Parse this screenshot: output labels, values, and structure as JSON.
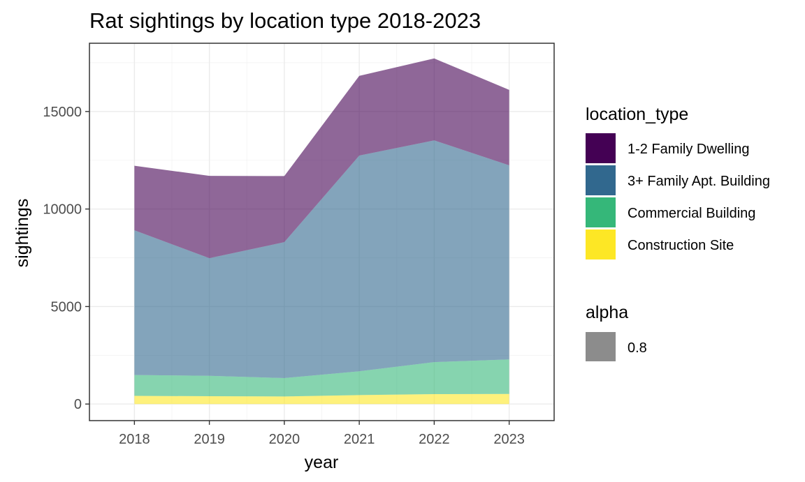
{
  "chart_data": {
    "type": "area",
    "stacked": true,
    "title": "Rat sightings by location type 2018-2023",
    "xlabel": "year",
    "ylabel": "sightings",
    "x": [
      2018,
      2019,
      2020,
      2021,
      2022,
      2023
    ],
    "xlim": [
      2017.4,
      2023.6
    ],
    "ylim": [
      -850,
      18500
    ],
    "y_ticks": [
      0,
      5000,
      10000,
      15000
    ],
    "grid": true,
    "legend_position": "right",
    "series_opacity": 0.6,
    "series": [
      {
        "name": "Construction Site",
        "color": "#FDE725",
        "values": [
          420,
          400,
          390,
          460,
          510,
          520
        ]
      },
      {
        "name": "Commercial Building",
        "color": "#35B779",
        "values": [
          1070,
          1050,
          940,
          1220,
          1640,
          1770
        ]
      },
      {
        "name": "3+ Family Apt. Building",
        "color": "#31688E",
        "values": [
          7420,
          6030,
          6970,
          11060,
          11370,
          9950
        ]
      },
      {
        "name": "1-2 Family Dwelling",
        "color": "#440154",
        "values": [
          3310,
          4220,
          3390,
          4090,
          4200,
          3870
        ]
      }
    ],
    "legend": {
      "title": "location_type",
      "entries": [
        {
          "label": "1-2 Family Dwelling",
          "color": "#440154"
        },
        {
          "label": "3+ Family Apt. Building",
          "color": "#31688E"
        },
        {
          "label": "Commercial Building",
          "color": "#35B779"
        },
        {
          "label": "Construction Site",
          "color": "#FDE725"
        }
      ]
    },
    "alpha_legend": {
      "title": "alpha",
      "entries": [
        {
          "label": "0.8",
          "color": "#8c8c8c"
        }
      ]
    }
  }
}
